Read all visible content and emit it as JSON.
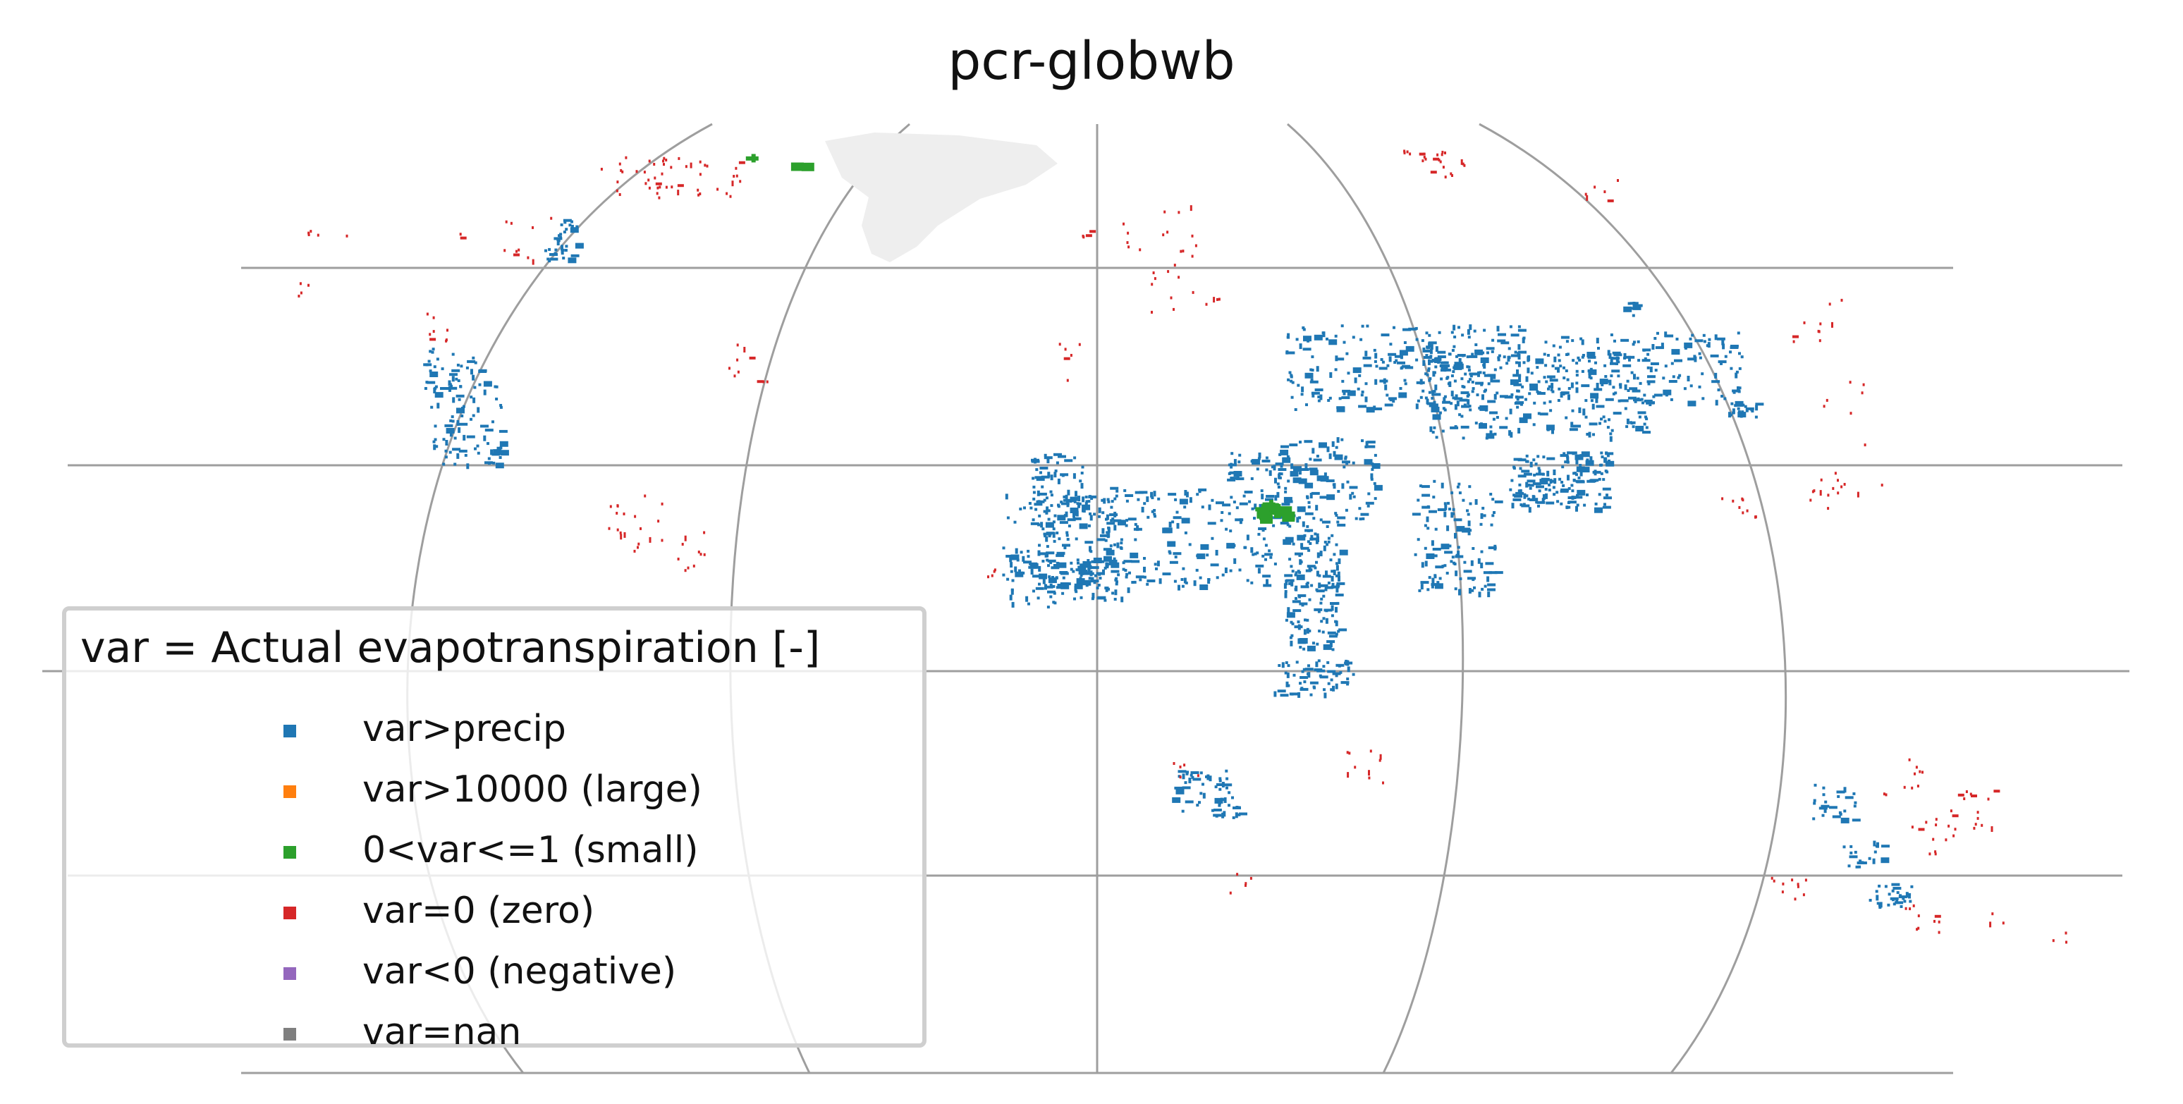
{
  "title": "pcr-globwb",
  "legend": {
    "title": "var = Actual evapotranspiration [-]",
    "items": [
      {
        "label": "var>precip",
        "color": "#1f77b4"
      },
      {
        "label": "var>10000 (large)",
        "color": "#ff7f0e"
      },
      {
        "label": "0<var<=1 (small)",
        "color": "#2ca02c"
      },
      {
        "label": "var=0 (zero)",
        "color": "#d62728"
      },
      {
        "label": "var<0 (negative)",
        "color": "#9467bd"
      },
      {
        "label": "var=nan",
        "color": "#7f7f7f"
      }
    ]
  },
  "colors": {
    "graticule": "#9e9e9e",
    "greenland": "#eeeeee"
  }
}
